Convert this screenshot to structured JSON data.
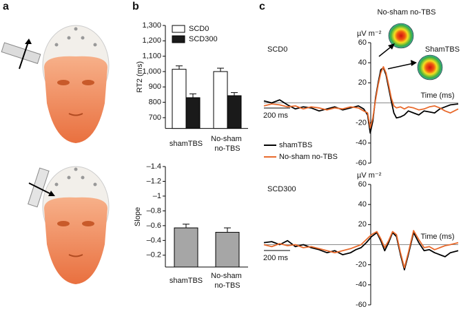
{
  "panel_labels": [
    "a",
    "b",
    "c"
  ],
  "chart_data": [
    {
      "type": "bar",
      "ylabel": "RT2 (ms)",
      "categories": [
        "shamTBS",
        "No-sham no-TBS"
      ],
      "series": [
        {
          "name": "SCD0",
          "color": "#ffffff",
          "values": [
            1015,
            1000
          ],
          "errors": [
            22,
            22
          ]
        },
        {
          "name": "SCD300",
          "color": "#1a1a1a",
          "values": [
            830,
            843
          ],
          "errors": [
            25,
            20
          ]
        }
      ],
      "ylim": [
        630,
        1300
      ],
      "yticks": [
        700,
        800,
        900,
        {
          "value": 1000,
          "label": "1,000"
        },
        {
          "value": 1100,
          "label": "1,100"
        },
        {
          "value": 1200,
          "label": "1,200"
        },
        {
          "value": 1300,
          "label": "1,300"
        }
      ],
      "legend": "top"
    },
    {
      "type": "bar",
      "ylabel": "Slope",
      "categories": [
        "shamTBS",
        "No-sham no-TBS"
      ],
      "values": [
        -0.57,
        -0.51
      ],
      "errors": [
        0.05,
        0.06
      ],
      "color": "#a6a6a6",
      "ylim": [
        -0.04,
        -1.4
      ],
      "yticks": [
        {
          "value": -0.2,
          "label": "–0.2"
        },
        {
          "value": -0.4,
          "label": "–0.4"
        },
        {
          "value": -0.6,
          "label": "–0.6"
        },
        {
          "value": -0.8,
          "label": "–0.8"
        },
        {
          "value": -1,
          "label": "–1"
        },
        {
          "value": -1.2,
          "label": "–1.2"
        },
        {
          "value": -1.4,
          "label": "–1.4"
        }
      ]
    },
    {
      "type": "line",
      "ylabel": "µV m⁻²",
      "annotations": [
        "SCD0",
        "Time (ms)",
        "200 ms",
        "No-sham no-TBS",
        "ShamTBS"
      ],
      "x": [
        0,
        60,
        120,
        180,
        240,
        300,
        360,
        420,
        480,
        540,
        600,
        660,
        720,
        760,
        790,
        810,
        830,
        850,
        870,
        890,
        910,
        930,
        950,
        970,
        990,
        1010,
        1040,
        1070,
        1100,
        1140,
        1180,
        1220,
        1260,
        1300,
        1340,
        1380,
        1420,
        1480
      ],
      "xlim": [
        0,
        1480
      ],
      "series": [
        {
          "name": "shamTBS",
          "color": "#000000",
          "values": [
            2,
            0,
            3,
            -2,
            -6,
            -4,
            -5,
            -8,
            -6,
            -4,
            -7,
            -5,
            -3,
            -6,
            -12,
            -30,
            -18,
            5,
            20,
            33,
            35,
            28,
            15,
            2,
            -10,
            -15,
            -14,
            -12,
            -8,
            -10,
            -12,
            -8,
            -9,
            -10,
            -6,
            -4,
            -2,
            -1
          ]
        },
        {
          "name": "No-sham no-TBS",
          "color": "#e8692b",
          "values": [
            -3,
            -1,
            -2,
            -4,
            -3,
            -6,
            -4,
            -5,
            -7,
            -5,
            -6,
            -4,
            -5,
            -8,
            -10,
            -25,
            -15,
            3,
            18,
            30,
            36,
            30,
            18,
            5,
            -3,
            -5,
            -4,
            -6,
            -4,
            -5,
            -7,
            -6,
            -4,
            -3,
            -5,
            -8,
            -10,
            -6
          ]
        }
      ],
      "ylim": [
        -60,
        60
      ],
      "yticks": [
        -60,
        -40,
        -20,
        20,
        40,
        60
      ],
      "legend": "below"
    },
    {
      "type": "line",
      "ylabel": "µV m⁻²",
      "annotations": [
        "SCD300",
        "Time (ms)",
        "200 ms"
      ],
      "x": [
        0,
        60,
        120,
        180,
        240,
        300,
        360,
        420,
        480,
        540,
        600,
        660,
        700,
        740,
        780,
        820,
        860,
        890,
        920,
        950,
        980,
        1010,
        1040,
        1070,
        1100,
        1140,
        1180,
        1220,
        1260,
        1300,
        1340,
        1380,
        1420,
        1480
      ],
      "xlim": [
        0,
        1480
      ],
      "series": [
        {
          "name": "shamTBS",
          "color": "#000000",
          "values": [
            2,
            3,
            0,
            4,
            -2,
            0,
            -3,
            -5,
            -8,
            -6,
            -10,
            -8,
            -5,
            -3,
            2,
            8,
            12,
            4,
            -6,
            2,
            12,
            8,
            -10,
            -25,
            -10,
            12,
            2,
            -6,
            -5,
            -8,
            -10,
            -12,
            -8,
            -6
          ]
        },
        {
          "name": "No-sham no-TBS",
          "color": "#e8692b",
          "values": [
            0,
            -2,
            1,
            -1,
            0,
            -3,
            -2,
            -4,
            -6,
            -8,
            -6,
            -4,
            -2,
            0,
            5,
            10,
            13,
            6,
            -3,
            4,
            13,
            10,
            -8,
            -23,
            -8,
            14,
            5,
            -3,
            -2,
            -5,
            -3,
            -1,
            0,
            2
          ]
        }
      ],
      "ylim": [
        -60,
        60
      ],
      "yticks": [
        -60,
        -40,
        -20,
        20,
        40,
        60
      ],
      "legend": false
    }
  ]
}
